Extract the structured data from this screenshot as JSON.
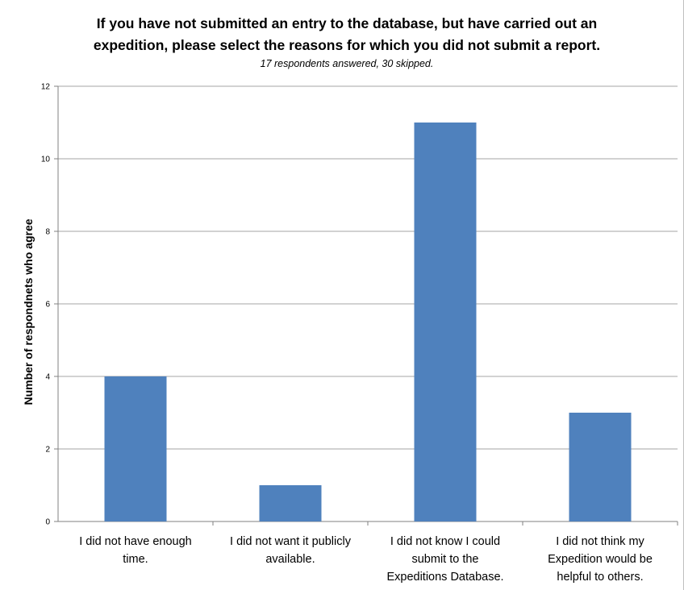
{
  "chart_data": {
    "type": "bar",
    "title": "If you have not submitted an entry to the database, but have carried out an\nexpedition, please select the reasons for which you did not submit a report.",
    "subtitle": "17 respondents answered, 30 skipped.",
    "xlabel": "",
    "ylabel": "Number of respondnets who agree",
    "categories": [
      [
        "I did not have enough",
        "time."
      ],
      [
        "I did not want it publicly",
        "available."
      ],
      [
        "I did not know I could",
        "submit to the",
        "Expeditions Database."
      ],
      [
        "I did not think my",
        "Expedition would be",
        "helpful to others."
      ]
    ],
    "values": [
      4,
      1,
      11,
      3
    ],
    "ylim": [
      0,
      12
    ],
    "yticks": [
      0,
      2,
      4,
      6,
      8,
      10,
      12
    ],
    "grid": true,
    "legend": "none",
    "bar_color": "#4f81bd",
    "grid_color": "#a6a6a6"
  }
}
